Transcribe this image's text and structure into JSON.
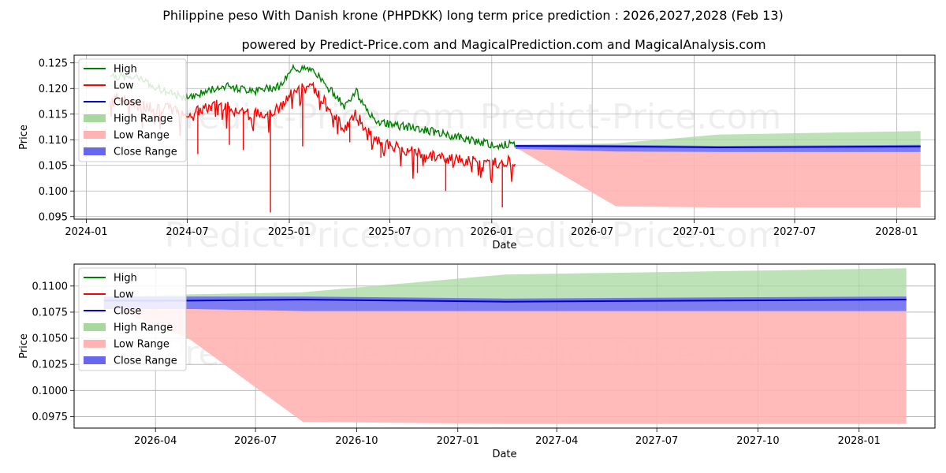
{
  "title": "Philippine peso With Danish krone (PHPDKK) long term price prediction : 2026,2027,2028 (Feb 13)",
  "subtitle": "powered by Predict-Price.com and MagicalPrediction.com and MagicalAnalysis.com",
  "watermark": "Predict-Price.com",
  "colors": {
    "high": "#008000",
    "low": "#ff0000",
    "close": "#0000cc",
    "high_range": "#a8d8a0",
    "low_range": "#ffb3b3",
    "close_range": "#6666ee",
    "grid": "#b0b0b0"
  },
  "legend": {
    "items": [
      {
        "label": "High",
        "kind": "line",
        "color": "#008000"
      },
      {
        "label": "Low",
        "kind": "line",
        "color": "#ff0000"
      },
      {
        "label": "Close",
        "kind": "line",
        "color": "#0000cc"
      },
      {
        "label": "High Range",
        "kind": "patch",
        "color": "#a8d8a0"
      },
      {
        "label": "Low Range",
        "kind": "patch",
        "color": "#ffb3b3"
      },
      {
        "label": "Close Range",
        "kind": "patch",
        "color": "#6666ee"
      }
    ]
  },
  "chart_data": [
    {
      "type": "line",
      "panel": "top",
      "xlabel": "Date",
      "ylabel": "Price",
      "xlim": [
        "2023-12-10",
        "2028-03-10"
      ],
      "ylim": [
        0.0945,
        0.1265
      ],
      "grid": true,
      "legend_position": "top-left",
      "x_ticks": [
        "2024-01",
        "2024-07",
        "2025-01",
        "2025-07",
        "2026-01",
        "2026-07",
        "2027-01",
        "2027-07",
        "2028-01"
      ],
      "y_ticks": [
        "0.095",
        "0.100",
        "0.105",
        "0.110",
        "0.115",
        "0.120",
        "0.125"
      ],
      "history": {
        "start": "2024-02-13",
        "end": "2026-02-13",
        "anchors": [
          {
            "date": "2024-02-13",
            "high": 0.1225,
            "low": 0.1185
          },
          {
            "date": "2024-04-01",
            "high": 0.122,
            "low": 0.117
          },
          {
            "date": "2024-06-01",
            "high": 0.119,
            "low": 0.116
          },
          {
            "date": "2024-07-01",
            "high": 0.118,
            "low": 0.115
          },
          {
            "date": "2024-09-01",
            "high": 0.1205,
            "low": 0.117
          },
          {
            "date": "2024-11-01",
            "high": 0.1195,
            "low": 0.115
          },
          {
            "date": "2024-12-15",
            "high": 0.1205,
            "low": 0.116
          },
          {
            "date": "2025-01-10",
            "high": 0.124,
            "low": 0.12
          },
          {
            "date": "2025-02-15",
            "high": 0.1235,
            "low": 0.12
          },
          {
            "date": "2025-03-10",
            "high": 0.1205,
            "low": 0.117
          },
          {
            "date": "2025-04-10",
            "high": 0.1165,
            "low": 0.112
          },
          {
            "date": "2025-05-01",
            "high": 0.1195,
            "low": 0.115
          },
          {
            "date": "2025-06-01",
            "high": 0.114,
            "low": 0.11
          },
          {
            "date": "2025-07-01",
            "high": 0.113,
            "low": 0.109
          },
          {
            "date": "2025-09-01",
            "high": 0.112,
            "low": 0.107
          },
          {
            "date": "2025-11-01",
            "high": 0.1105,
            "low": 0.106
          },
          {
            "date": "2026-01-01",
            "high": 0.109,
            "low": 0.1055
          },
          {
            "date": "2026-02-13",
            "high": 0.109,
            "low": 0.106
          }
        ],
        "low_spikes": [
          {
            "date": "2024-07-20",
            "value": 0.1072
          },
          {
            "date": "2024-09-15",
            "value": 0.109
          },
          {
            "date": "2024-10-10",
            "value": 0.108
          },
          {
            "date": "2024-11-28",
            "value": 0.0958
          },
          {
            "date": "2025-01-25",
            "value": 0.1087
          },
          {
            "date": "2025-04-20",
            "value": 0.1095
          },
          {
            "date": "2025-06-15",
            "value": 0.1065
          },
          {
            "date": "2025-08-20",
            "value": 0.1035
          },
          {
            "date": "2025-10-10",
            "value": 0.1
          },
          {
            "date": "2026-01-20",
            "value": 0.0968
          }
        ]
      },
      "forecast": {
        "dates": [
          "2026-02-13",
          "2026-08-13",
          "2027-02-13",
          "2028-02-13"
        ],
        "close": [
          0.1088,
          0.1087,
          0.1085,
          0.1087
        ],
        "high_range_upper": [
          0.109,
          0.1093,
          0.111,
          0.1117
        ],
        "low_range_lower": [
          0.1085,
          0.097,
          0.0968,
          0.0968
        ],
        "close_range": [
          [
            0.1082,
            0.109
          ],
          [
            0.1077,
            0.109
          ],
          [
            0.1076,
            0.1088
          ],
          [
            0.1076,
            0.109
          ]
        ]
      }
    },
    {
      "type": "area",
      "panel": "bottom",
      "xlabel": "Date",
      "ylabel": "Price",
      "xlim": [
        "2026-01-17",
        "2028-03-10"
      ],
      "ylim": [
        0.0964,
        0.1121
      ],
      "grid": true,
      "legend_position": "top-left",
      "x_ticks": [
        "2026-04",
        "2026-07",
        "2026-10",
        "2027-01",
        "2027-04",
        "2027-07",
        "2027-10",
        "2028-01"
      ],
      "y_ticks": [
        "0.0975",
        "0.1000",
        "0.1025",
        "0.1050",
        "0.1075",
        "0.1100"
      ],
      "dates": [
        "2026-02-13",
        "2026-05-01",
        "2026-08-13",
        "2027-02-13",
        "2028-02-13"
      ],
      "close": [
        0.1086,
        0.1086,
        0.1087,
        0.1085,
        0.1087
      ],
      "high_range_upper": [
        0.1089,
        0.1092,
        0.1094,
        0.1111,
        0.1117
      ],
      "low_range_lower": [
        0.1082,
        0.105,
        0.097,
        0.0968,
        0.0968
      ],
      "close_range": [
        [
          0.1078,
          0.109
        ],
        [
          0.1078,
          0.109
        ],
        [
          0.1076,
          0.109
        ],
        [
          0.1076,
          0.1088
        ],
        [
          0.1076,
          0.109
        ]
      ]
    }
  ]
}
